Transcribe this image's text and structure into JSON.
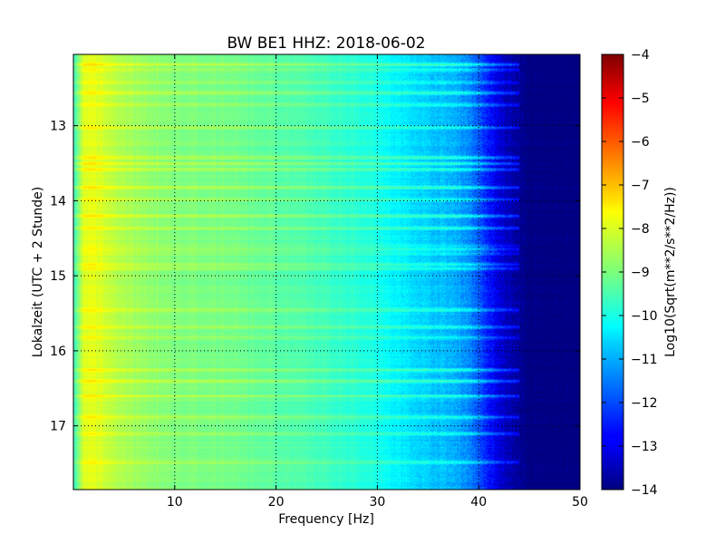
{
  "chart_data": {
    "type": "heatmap",
    "title": "BW BE1 HHZ: 2018-06-02",
    "xlabel": "Frequency [Hz]",
    "ylabel": "Lokalzeit (UTC + 2 Stunde)",
    "colorbar_label": "Log10(Sqrt(m**2/s**2/Hz))",
    "xlim": [
      0,
      50
    ],
    "ylim": [
      17.85,
      12.05
    ],
    "y_inverted": true,
    "clim": [
      -14,
      -4
    ],
    "colormap": "jet",
    "grid": true,
    "xticks": [
      10,
      20,
      30,
      40,
      50
    ],
    "xtick_labels": [
      "10",
      "20",
      "30",
      "40",
      "50"
    ],
    "yticks": [
      13,
      14,
      15,
      16,
      17
    ],
    "ytick_labels": [
      "13",
      "14",
      "15",
      "16",
      "17"
    ],
    "cbar_ticks": [
      -4,
      -5,
      -6,
      -7,
      -8,
      -9,
      -10,
      -11,
      -12,
      -13,
      -14
    ],
    "cbar_tick_labels": [
      "−4",
      "−5",
      "−6",
      "−7",
      "−8",
      "−9",
      "−10",
      "−11",
      "−12",
      "−13",
      "−14"
    ],
    "spectrum_profile": {
      "frequency_hz": [
        0,
        0.5,
        1,
        2,
        3,
        5,
        8,
        10,
        15,
        20,
        25,
        28,
        29,
        30,
        31,
        33,
        35,
        37,
        38,
        39,
        40,
        41,
        42,
        43,
        44,
        45,
        50
      ],
      "level": [
        -9.8,
        -9.0,
        -8.1,
        -8.0,
        -8.2,
        -8.6,
        -8.9,
        -9.0,
        -9.1,
        -9.35,
        -9.65,
        -9.85,
        -9.95,
        -10.0,
        -10.25,
        -10.5,
        -10.75,
        -10.95,
        -11.1,
        -11.4,
        -11.9,
        -12.6,
        -13.1,
        -13.5,
        -13.8,
        -14.0,
        -14.0
      ]
    },
    "noise_bands_hour": [
      12.18,
      12.25,
      12.42,
      12.56,
      12.72,
      13.02,
      13.42,
      13.5,
      13.58,
      13.82,
      13.98,
      14.2,
      14.36,
      14.6,
      14.64,
      14.7,
      14.84,
      14.9,
      15.45,
      15.68,
      15.82,
      16.25,
      16.4,
      16.6,
      16.88,
      17.1,
      17.48
    ]
  }
}
